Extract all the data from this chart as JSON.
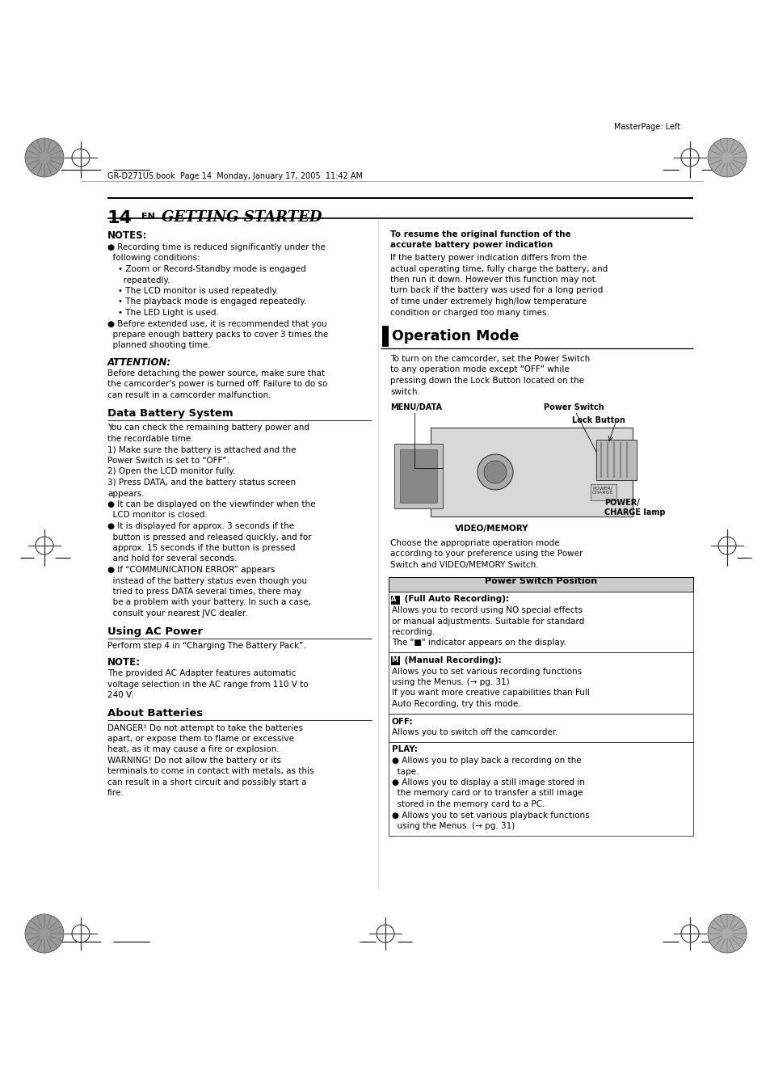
{
  "bg_color": "#ffffff",
  "page_width": 9.54,
  "page_height": 13.51,
  "dpi": 100,
  "top_margin_text": "MasterPage: Left",
  "file_info": "GR-D271US.book  Page 14  Monday, January 17, 2005  11:42 AM",
  "heading_number": "14",
  "heading_en": "EN",
  "heading_title": "GETTING STARTED",
  "notes_heading": "NOTES:",
  "notes_lines": [
    "● Recording time is reduced significantly under the",
    "  following conditions:",
    "    • Zoom or Record-Standby mode is engaged",
    "      repeatedly.",
    "    • The LCD monitor is used repeatedly.",
    "    • The playback mode is engaged repeatedly.",
    "    • The LED Light is used.",
    "● Before extended use, it is recommended that you",
    "  prepare enough battery packs to cover 3 times the",
    "  planned shooting time."
  ],
  "attention_heading": "ATTENTION:",
  "attention_lines": [
    "Before detaching the power source, make sure that",
    "the camcorder's power is turned off. Failure to do so",
    "can result in a camcorder malfunction."
  ],
  "dbs_heading": "Data Battery System",
  "dbs_lines": [
    "You can check the remaining battery power and",
    "the recordable time.",
    "1) Make sure the battery is attached and the",
    "Power Switch is set to “OFF”.",
    "2) Open the LCD monitor fully.",
    "3) Press DATA, and the battery status screen",
    "appears.",
    "● It can be displayed on the viewfinder when the",
    "  LCD monitor is closed.",
    "● It is displayed for approx. 3 seconds if the",
    "  button is pressed and released quickly, and for",
    "  approx. 15 seconds if the button is pressed",
    "  and hold for several seconds.",
    "● If “COMMUNICATION ERROR” appears",
    "  instead of the battery status even though you",
    "  tried to press DATA several times, there may",
    "  be a problem with your battery. In such a case,",
    "  consult your nearest JVC dealer."
  ],
  "uap_heading": "Using AC Power",
  "uap_lines": [
    "Perform step 4 in “Charging The Battery Pack”."
  ],
  "note_heading": "NOTE:",
  "note_lines": [
    "The provided AC Adapter features automatic",
    "voltage selection in the AC range from 110 V to",
    "240 V."
  ],
  "ab_heading": "About Batteries",
  "ab_lines": [
    "DANGER! Do not attempt to take the batteries",
    "apart, or expose them to flame or excessive",
    "heat, as it may cause a fire or explosion.",
    "WARNING! Do not allow the battery or its",
    "terminals to come in contact with metals, as this",
    "can result in a short circuit and possibly start a",
    "fire."
  ],
  "resume_heading": "To resume the original function of the",
  "resume_heading2": "accurate battery power indication",
  "resume_lines": [
    "If the battery power indication differs from the",
    "actual operating time, fully charge the battery, and",
    "then run it down. However this function may not",
    "turn back if the battery was used for a long period",
    "of time under extremely high/low temperature",
    "condition or charged too many times."
  ],
  "op_mode_heading": "Operation Mode",
  "op_mode_intro": [
    "To turn on the camcorder, set the Power Switch",
    "to any operation mode except “OFF” while",
    "pressing down the Lock Button located on the",
    "switch."
  ],
  "cam_label_menu": "MENU/DATA",
  "cam_label_power": "Power Switch",
  "cam_label_lock": "Lock Button",
  "cam_label_powercharge": "POWER/\nCHARGE lamp",
  "cam_label_video": "VIDEO/MEMORY",
  "choose_text": [
    "Choose the appropriate operation mode",
    "according to your preference using the Power",
    "Switch and VIDEO/MEMORY Switch."
  ],
  "psp_heading": "Power Switch Position",
  "psp_entries": [
    {
      "icon": "A",
      "title": " (Full Auto Recording):",
      "lines": [
        "Allows you to record using NO special effects",
        "or manual adjustments. Suitable for standard",
        "recording.",
        "The \"■\" indicator appears on the display."
      ]
    },
    {
      "icon": "M",
      "title": " (Manual Recording):",
      "lines": [
        "Allows you to set various recording functions",
        "using the Menus. (→ pg. 31)",
        "If you want more creative capabilities than Full",
        "Auto Recording, try this mode."
      ]
    },
    {
      "icon": "",
      "title": "OFF:",
      "lines": [
        "Allows you to switch off the camcorder."
      ]
    },
    {
      "icon": "",
      "title": "PLAY:",
      "lines": [
        "● Allows you to play back a recording on the",
        "  tape.",
        "● Allows you to display a still image stored in",
        "  the memory card or to transfer a still image",
        "  stored in the memory card to a PC.",
        "● Allows you to set various playback functions",
        "  using the Menus. (→ pg. 31)"
      ]
    }
  ]
}
